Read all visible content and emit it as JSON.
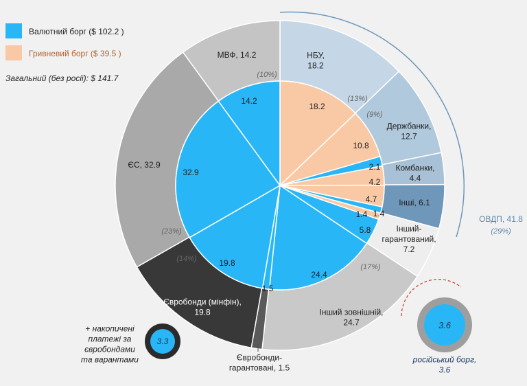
{
  "legend": {
    "currency": {
      "label": "Валютний борг ($ 102.2 )",
      "color": "#29b6f6"
    },
    "hryvnia": {
      "label": "Гривневий борг ($ 39.5 )",
      "color": "#f9c9a6"
    },
    "total": "Загальний (без росії): $ 141.7"
  },
  "chart_data": {
    "type": "pie",
    "title": "",
    "outer_ring": [
      {
        "name": "НБУ",
        "value": 18.2,
        "label": "НБУ,\n18.2",
        "pct": "(13%)",
        "color": "#c5d7e6"
      },
      {
        "name": "Держбанки",
        "value": 12.7,
        "label": "Держбанки,\n12.7",
        "pct": "(9%)",
        "color": "#b1c9dc"
      },
      {
        "name": "Комбанки",
        "value": 4.4,
        "label": "Комбанки,\n4.4",
        "pct": "",
        "color": "#a9c1d6"
      },
      {
        "name": "Інші",
        "value": 6.1,
        "label": "Інші, 6.1",
        "pct": "",
        "color": "#6f97ba"
      },
      {
        "name": "Інший гарантований",
        "value": 7.2,
        "label": "Інший-\nгарантований,\n7.2",
        "pct": "",
        "color": "#eeeeee"
      },
      {
        "name": "Інший зовнішній",
        "value": 24.7,
        "label": "Інший зовнішній,\n24.7",
        "pct": "(17%)",
        "color": "#c9c9c9"
      },
      {
        "name": "Євробонди-гарантовані",
        "value": 1.5,
        "label": "",
        "pct": "",
        "color": "#5a5a5a"
      },
      {
        "name": "Євробонди (мінфін)",
        "value": 19.8,
        "label": "Євробонди (мінфін),\n19.8",
        "pct": "(14%)",
        "color": "#383838"
      },
      {
        "name": "ЄС",
        "value": 32.9,
        "label": "ЄС, 32.9",
        "pct": "(23%)",
        "color": "#a9a9a9"
      },
      {
        "name": "МВФ",
        "value": 14.2,
        "label": "МВФ, 14.2",
        "pct": "(10%)",
        "color": "#c4c4c4"
      }
    ],
    "inner_ring": [
      {
        "value": 18.2,
        "kind": "hryvnia",
        "label": "18.2"
      },
      {
        "value": 10.8,
        "kind": "hryvnia",
        "label": "10.8"
      },
      {
        "value": 2.1,
        "kind": "currency",
        "label": "2.1"
      },
      {
        "value": 4.2,
        "kind": "hryvnia",
        "label": "4.2"
      },
      {
        "value": 4.7,
        "kind": "hryvnia",
        "label": "4.7"
      },
      {
        "value": 1.4,
        "kind": "currency",
        "label": "1.4"
      },
      {
        "value": 1.4,
        "kind": "hryvnia",
        "label": "1.4"
      },
      {
        "value": 5.8,
        "kind": "currency",
        "label": "5.8"
      },
      {
        "value": 24.4,
        "kind": "currency",
        "label": "24.4"
      },
      {
        "value": 1.5,
        "kind": "currency",
        "label": "1.5"
      },
      {
        "value": 19.8,
        "kind": "currency",
        "label": "19.8"
      },
      {
        "value": 32.9,
        "kind": "currency",
        "label": "32.9"
      },
      {
        "value": 14.2,
        "kind": "currency",
        "label": "14.2"
      }
    ],
    "annotations": {
      "ovdp": {
        "label": "ОВДП, 41.8",
        "pct": "(29%)"
      },
      "eurobond_guaranteed": {
        "label": "Євробонди-\nгарантовані, 1.5"
      },
      "accrued": {
        "label": "+ накопичені\nплатежі за\nєвробондами\nта варантами",
        "value": "3.3"
      },
      "russian": {
        "label": "російський борг,\n3.6",
        "value": "3.6"
      }
    }
  }
}
